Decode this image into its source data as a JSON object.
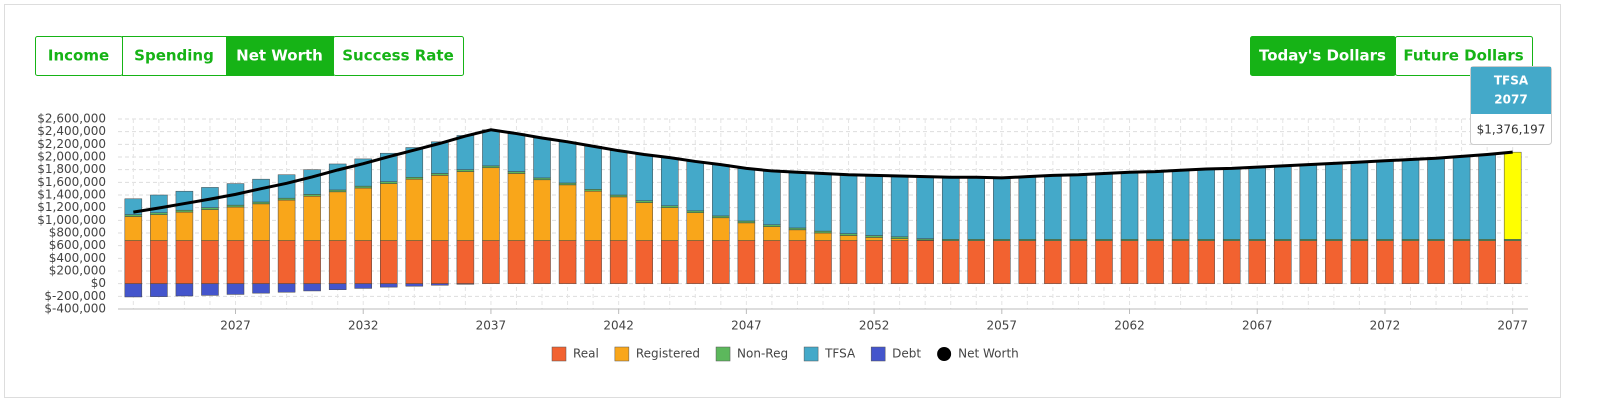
{
  "tabs": {
    "items": [
      "Income",
      "Spending",
      "Net Worth",
      "Success Rate"
    ],
    "active": 2
  },
  "dollar_toggle": {
    "items": [
      "Today's Dollars",
      "Future Dollars"
    ],
    "active": 0
  },
  "chart_data": {
    "type": "bar",
    "x": [
      2023,
      2024,
      2025,
      2026,
      2027,
      2028,
      2029,
      2030,
      2031,
      2032,
      2033,
      2034,
      2035,
      2036,
      2037,
      2038,
      2039,
      2040,
      2041,
      2042,
      2043,
      2044,
      2045,
      2046,
      2047,
      2048,
      2049,
      2050,
      2051,
      2052,
      2053,
      2054,
      2055,
      2056,
      2057,
      2058,
      2059,
      2060,
      2061,
      2062,
      2063,
      2064,
      2065,
      2066,
      2067,
      2068,
      2069,
      2070,
      2071,
      2072,
      2073,
      2074,
      2075,
      2076,
      2077
    ],
    "xlim": [
      2022.4,
      2077.6
    ],
    "xticks": [
      2027,
      2032,
      2037,
      2042,
      2047,
      2052,
      2057,
      2062,
      2067,
      2072,
      2077
    ],
    "ylim": [
      -400000,
      2600000
    ],
    "yticks": [
      {
        "value": -400000,
        "label": "$-400,000"
      },
      {
        "value": -200000,
        "label": "$-200,000"
      },
      {
        "value": 0,
        "label": "$0"
      },
      {
        "value": 200000,
        "label": "$200,000"
      },
      {
        "value": 400000,
        "label": "$400,000"
      },
      {
        "value": 600000,
        "label": "$600,000"
      },
      {
        "value": 800000,
        "label": "$800,000"
      },
      {
        "value": 1000000,
        "label": "$1,000,000"
      },
      {
        "value": 1200000,
        "label": "$1,200,000"
      },
      {
        "value": 1400000,
        "label": "$1,400,000"
      },
      {
        "value": 1600000,
        "label": "$1,600,000"
      },
      {
        "value": 1800000,
        "label": "$1,800,000"
      },
      {
        "value": 2000000,
        "label": "$2,000,000"
      },
      {
        "value": 2200000,
        "label": "$2,200,000"
      },
      {
        "value": 2400000,
        "label": "$2,400,000"
      },
      {
        "value": 2600000,
        "label": "$2,600,000"
      }
    ],
    "grid": true,
    "series": [
      {
        "name": "Real",
        "color": "#f26230",
        "type": "bar",
        "values": [
          680000,
          680000,
          680000,
          680000,
          680000,
          680000,
          680000,
          680000,
          680000,
          680000,
          680000,
          680000,
          680000,
          680000,
          680000,
          680000,
          680000,
          680000,
          680000,
          680000,
          680000,
          680000,
          680000,
          680000,
          680000,
          680000,
          680000,
          680000,
          680000,
          680000,
          680000,
          680000,
          680000,
          680000,
          680000,
          680000,
          680000,
          680000,
          680000,
          680000,
          680000,
          680000,
          680000,
          680000,
          680000,
          680000,
          680000,
          680000,
          680000,
          680000,
          680000,
          680000,
          680000,
          680000,
          680000
        ]
      },
      {
        "name": "Registered",
        "color": "#f9a61a",
        "type": "bar",
        "values": [
          380000,
          410000,
          450000,
          490000,
          530000,
          580000,
          640000,
          700000,
          770000,
          830000,
          900000,
          970000,
          1030000,
          1090000,
          1150000,
          1060000,
          960000,
          880000,
          780000,
          690000,
          600000,
          520000,
          440000,
          360000,
          280000,
          220000,
          170000,
          120000,
          80000,
          50000,
          30000,
          10000,
          0,
          0,
          0,
          0,
          0,
          0,
          0,
          0,
          0,
          0,
          0,
          0,
          0,
          0,
          0,
          0,
          0,
          0,
          0,
          0,
          0,
          0,
          0
        ]
      },
      {
        "name": "Non-Reg",
        "color": "#5cb85c",
        "type": "bar",
        "values": [
          30000,
          30000,
          30000,
          30000,
          30000,
          30000,
          30000,
          30000,
          30000,
          30000,
          30000,
          30000,
          30000,
          30000,
          30000,
          30000,
          30000,
          30000,
          30000,
          30000,
          30000,
          30000,
          30000,
          30000,
          30000,
          30000,
          30000,
          30000,
          30000,
          30000,
          30000,
          20000,
          20000,
          20000,
          20000,
          20000,
          20000,
          20000,
          20000,
          20000,
          20000,
          20000,
          20000,
          20000,
          20000,
          20000,
          20000,
          20000,
          20000,
          20000,
          20000,
          20000,
          20000,
          20000,
          20000
        ]
      },
      {
        "name": "TFSA",
        "color": "#44a9c9",
        "type": "bar",
        "values": [
          250000,
          280000,
          300000,
          320000,
          340000,
          360000,
          370000,
          390000,
          410000,
          430000,
          450000,
          470000,
          500000,
          540000,
          570000,
          600000,
          630000,
          650000,
          680000,
          700000,
          730000,
          760000,
          780000,
          810000,
          830000,
          850000,
          880000,
          910000,
          930000,
          950000,
          960000,
          980000,
          980000,
          980000,
          970000,
          990000,
          1010000,
          1020000,
          1040000,
          1060000,
          1070000,
          1090000,
          1110000,
          1120000,
          1140000,
          1160000,
          1180000,
          1200000,
          1220000,
          1240000,
          1260000,
          1280000,
          1310000,
          1340000,
          1376197
        ]
      },
      {
        "name": "Debt",
        "color": "#4455cc",
        "type": "bar",
        "values": [
          -210000,
          -205000,
          -195000,
          -185000,
          -170000,
          -150000,
          -135000,
          -115000,
          -95000,
          -75000,
          -55000,
          -40000,
          -25000,
          -10000,
          0,
          0,
          0,
          0,
          0,
          0,
          0,
          0,
          0,
          0,
          0,
          0,
          0,
          0,
          0,
          0,
          0,
          0,
          0,
          0,
          0,
          0,
          0,
          0,
          0,
          0,
          0,
          0,
          0,
          0,
          0,
          0,
          0,
          0,
          0,
          0,
          0,
          0,
          0,
          0,
          0
        ]
      },
      {
        "name": "Net Worth",
        "color": "#000000",
        "type": "line",
        "values": [
          1130000,
          1195000,
          1265000,
          1335000,
          1410000,
          1500000,
          1585000,
          1685000,
          1795000,
          1895000,
          2005000,
          2110000,
          2215000,
          2330000,
          2430000,
          2370000,
          2300000,
          2240000,
          2170000,
          2100000,
          2040000,
          1990000,
          1930000,
          1880000,
          1820000,
          1780000,
          1760000,
          1740000,
          1720000,
          1710000,
          1700000,
          1690000,
          1680000,
          1680000,
          1670000,
          1690000,
          1710000,
          1720000,
          1740000,
          1760000,
          1770000,
          1790000,
          1810000,
          1820000,
          1840000,
          1860000,
          1880000,
          1900000,
          1920000,
          1940000,
          1960000,
          1980000,
          2010000,
          2040000,
          2076197
        ]
      }
    ],
    "highlight": {
      "series": 3,
      "index": 54,
      "color": "#ffff00"
    },
    "tooltip": {
      "series": "TFSA",
      "category": "2077",
      "label": "$1,376,197"
    }
  }
}
